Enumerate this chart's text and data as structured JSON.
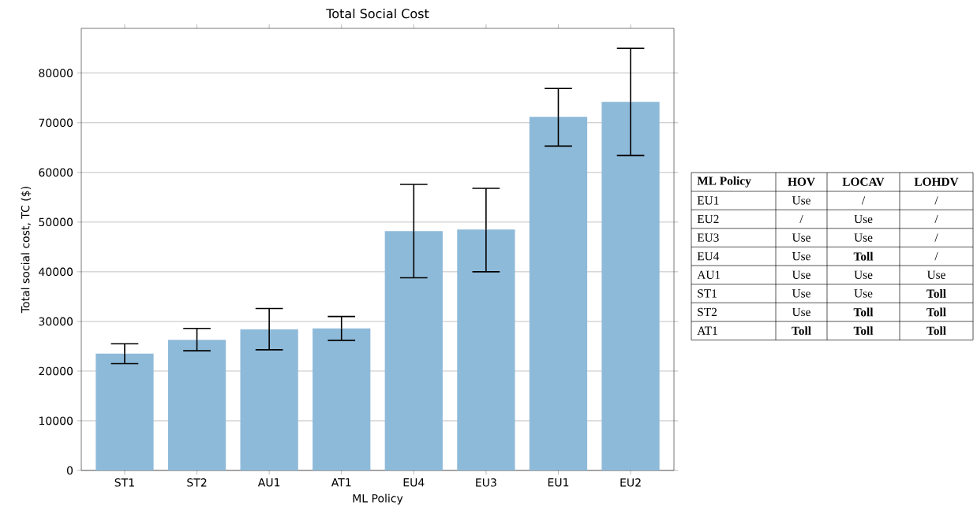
{
  "chart_data": [
    {
      "type": "bar",
      "title": "Total Social Cost",
      "xlabel": "ML Policy",
      "ylabel": "Total social cost, TC ($)",
      "categories": [
        "ST1",
        "ST2",
        "AU1",
        "AT1",
        "EU4",
        "EU3",
        "EU1",
        "EU2"
      ],
      "values": [
        23500,
        26300,
        28400,
        28600,
        48200,
        48500,
        71200,
        74200
      ],
      "errors": [
        [
          21500,
          25500
        ],
        [
          24100,
          28600
        ],
        [
          24300,
          32600
        ],
        [
          26200,
          31000
        ],
        [
          38800,
          57600
        ],
        [
          40000,
          56800
        ],
        [
          65300,
          76900
        ],
        [
          63400,
          85000
        ]
      ],
      "color": "#8ebad9",
      "ylim": [
        0,
        89000
      ],
      "yticks": [
        0,
        10000,
        20000,
        30000,
        40000,
        50000,
        60000,
        70000,
        80000
      ],
      "grid": "y"
    },
    {
      "type": "other",
      "ylabel": "ML Policy",
      "categories": [
        "HOV",
        "LOCAV",
        "LOHDV"
      ],
      "y_categories": [
        "EU1",
        "EU2",
        "EU3",
        "EU4",
        "AU1",
        "ST1",
        "ST2",
        "AT1"
      ],
      "cell_labels": [
        [
          "Use",
          "/",
          "/"
        ],
        [
          "/",
          "Use",
          "/"
        ],
        [
          "Use",
          "Use",
          "/"
        ],
        [
          "Use",
          "**Toll**",
          "/"
        ],
        [
          "Use",
          "Use",
          "Use"
        ],
        [
          "Use",
          "Use",
          "**Toll**"
        ],
        [
          "Use",
          "**Toll**",
          "**Toll**"
        ],
        [
          "**Toll**",
          "**Toll**",
          "**Toll**"
        ]
      ]
    }
  ]
}
